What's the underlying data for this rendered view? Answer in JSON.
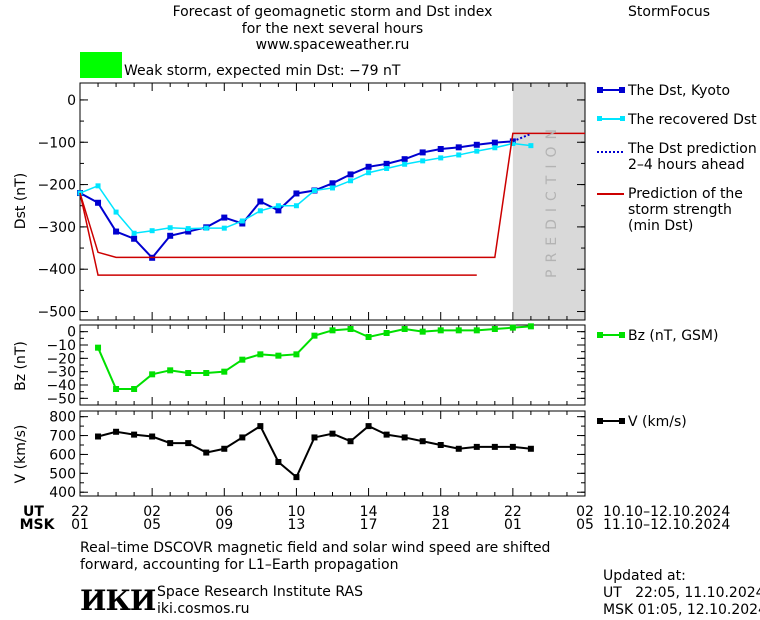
{
  "header": {
    "title_line1": "Forecast of geomagnetic storm and Dst index",
    "title_line2": "for the next several hours",
    "url": "www.spaceweather.ru",
    "brand": "StormFocus"
  },
  "storm_indicator": {
    "color": "#00ff00",
    "text": "Weak storm, expected min Dst: −79 nT"
  },
  "colors": {
    "dst": "#0000d0",
    "recovered": "#00e5ff",
    "prediction_line": "#0000d0",
    "storm_strength": "#cc0000",
    "bz": "#00e000",
    "v": "#000000",
    "prediction_band": "#d9d9d9"
  },
  "prediction_band_label": "PREDICTION",
  "legends": {
    "dst": "The Dst, Kyoto",
    "recovered": "The recovered Dst",
    "prediction_l1": "The Dst prediction",
    "prediction_l2": "2–4 hours ahead",
    "storm_l1": "Prediction of the",
    "storm_l2": "storm strength",
    "storm_l3": "(min Dst)",
    "bz": "Bz (nT, GSM)",
    "v": "V (km/s)"
  },
  "time_axis": {
    "ut_label": "UT",
    "msk_label": "MSK",
    "ut_ticks": [
      "22",
      "02",
      "06",
      "10",
      "14",
      "18",
      "22",
      "02"
    ],
    "msk_ticks": [
      "01",
      "05",
      "09",
      "13",
      "17",
      "21",
      "01",
      "05"
    ],
    "ut_range": "10.10–12.10.2024",
    "msk_range": "11.10–12.10.2024"
  },
  "footer": {
    "note_line1": "Real–time DSCOVR magnetic field and solar wind speed are shifted",
    "note_line2": "forward, accounting for L1–Earth propagation",
    "logo_text": "ИКИ",
    "institute": "Space Research Institute RAS",
    "site": "iki.cosmos.ru",
    "updated_label": "Updated at:",
    "updated_ut": "UT   22:05, 11.10.2024",
    "updated_msk": "MSK 01:05, 12.10.2024"
  },
  "chart_data": [
    {
      "type": "line",
      "ylabel": "Dst (nT)",
      "xlim": [
        0,
        28
      ],
      "ylim": [
        -520,
        40
      ],
      "yticks": [
        0,
        -100,
        -200,
        -300,
        -400,
        -500
      ],
      "ytick_labels": [
        "0",
        "−100",
        "−200",
        "−300",
        "−400",
        "−500"
      ],
      "prediction_band_x": [
        24,
        28
      ],
      "series": [
        {
          "name": "The Dst, Kyoto",
          "x": [
            0,
            1,
            2,
            3,
            4,
            5,
            6,
            7,
            8,
            9,
            10,
            11,
            12,
            13,
            14,
            15,
            16,
            17,
            18,
            19,
            20,
            21,
            22,
            23,
            24
          ],
          "y": [
            -220,
            -243,
            -311,
            -328,
            -373,
            -321,
            -311,
            -301,
            -278,
            -292,
            -240,
            -261,
            -221,
            -214,
            -197,
            -176,
            -158,
            -151,
            -140,
            -124,
            -116,
            -112,
            -106,
            -101,
            -98
          ]
        },
        {
          "name": "The recovered Dst",
          "x": [
            0,
            1,
            2,
            3,
            4,
            5,
            6,
            7,
            8,
            9,
            10,
            11,
            12,
            13,
            14,
            15,
            16,
            17,
            18,
            19,
            20,
            21,
            22,
            23,
            24,
            25
          ],
          "y": [
            -220,
            -203,
            -265,
            -315,
            -309,
            -302,
            -304,
            -303,
            -303,
            -286,
            -262,
            -250,
            -250,
            -214,
            -208,
            -191,
            -172,
            -162,
            -152,
            -144,
            -137,
            -130,
            -121,
            -113,
            -103,
            -108
          ]
        },
        {
          "name": "The Dst prediction 2–4 hours ahead",
          "x": [
            24,
            25
          ],
          "y": [
            -98,
            -80
          ]
        },
        {
          "name": "Prediction of the storm strength (min Dst)",
          "x": [
            0,
            1,
            2,
            23,
            24,
            28
          ],
          "y": [
            -220,
            -360,
            -372,
            -372,
            -79,
            -79
          ]
        },
        {
          "name": "",
          "x": [
            0,
            1,
            22
          ],
          "y": [
            -220,
            -414,
            -414
          ]
        }
      ]
    },
    {
      "type": "line",
      "ylabel": "Bz (nT)",
      "xlim": [
        0,
        28
      ],
      "ylim": [
        -55,
        5
      ],
      "yticks": [
        0,
        -10,
        -20,
        -30,
        -40,
        -50
      ],
      "ytick_labels": [
        "0",
        "−10",
        "−20",
        "−30",
        "−40",
        "−50"
      ],
      "series": [
        {
          "name": "Bz (nT, GSM)",
          "x": [
            1,
            2,
            3,
            4,
            5,
            6,
            7,
            8,
            9,
            10,
            11,
            12,
            13,
            14,
            15,
            16,
            17,
            18,
            19,
            20,
            21,
            22,
            23,
            24,
            25
          ],
          "y": [
            -12,
            -43,
            -43,
            -32,
            -29,
            -31,
            -31,
            -30,
            -21,
            -17,
            -18,
            -17,
            -3,
            1,
            2,
            -4,
            -1,
            2,
            0,
            1,
            1,
            1,
            2,
            3,
            4
          ]
        }
      ]
    },
    {
      "type": "line",
      "ylabel": "V (km/s)",
      "xlim": [
        0,
        28
      ],
      "ylim": [
        380,
        830
      ],
      "yticks": [
        400,
        500,
        600,
        700,
        800
      ],
      "ytick_labels": [
        "400",
        "500",
        "600",
        "700",
        "800"
      ],
      "series": [
        {
          "name": "V (km/s)",
          "x": [
            1,
            2,
            3,
            4,
            5,
            6,
            7,
            8,
            9,
            10,
            11,
            12,
            13,
            14,
            15,
            16,
            17,
            18,
            19,
            20,
            21,
            22,
            23,
            24,
            25
          ],
          "y": [
            695,
            720,
            705,
            695,
            660,
            660,
            610,
            630,
            690,
            750,
            560,
            480,
            690,
            710,
            670,
            750,
            705,
            690,
            670,
            650,
            630,
            640,
            640,
            640,
            630
          ]
        }
      ]
    }
  ]
}
